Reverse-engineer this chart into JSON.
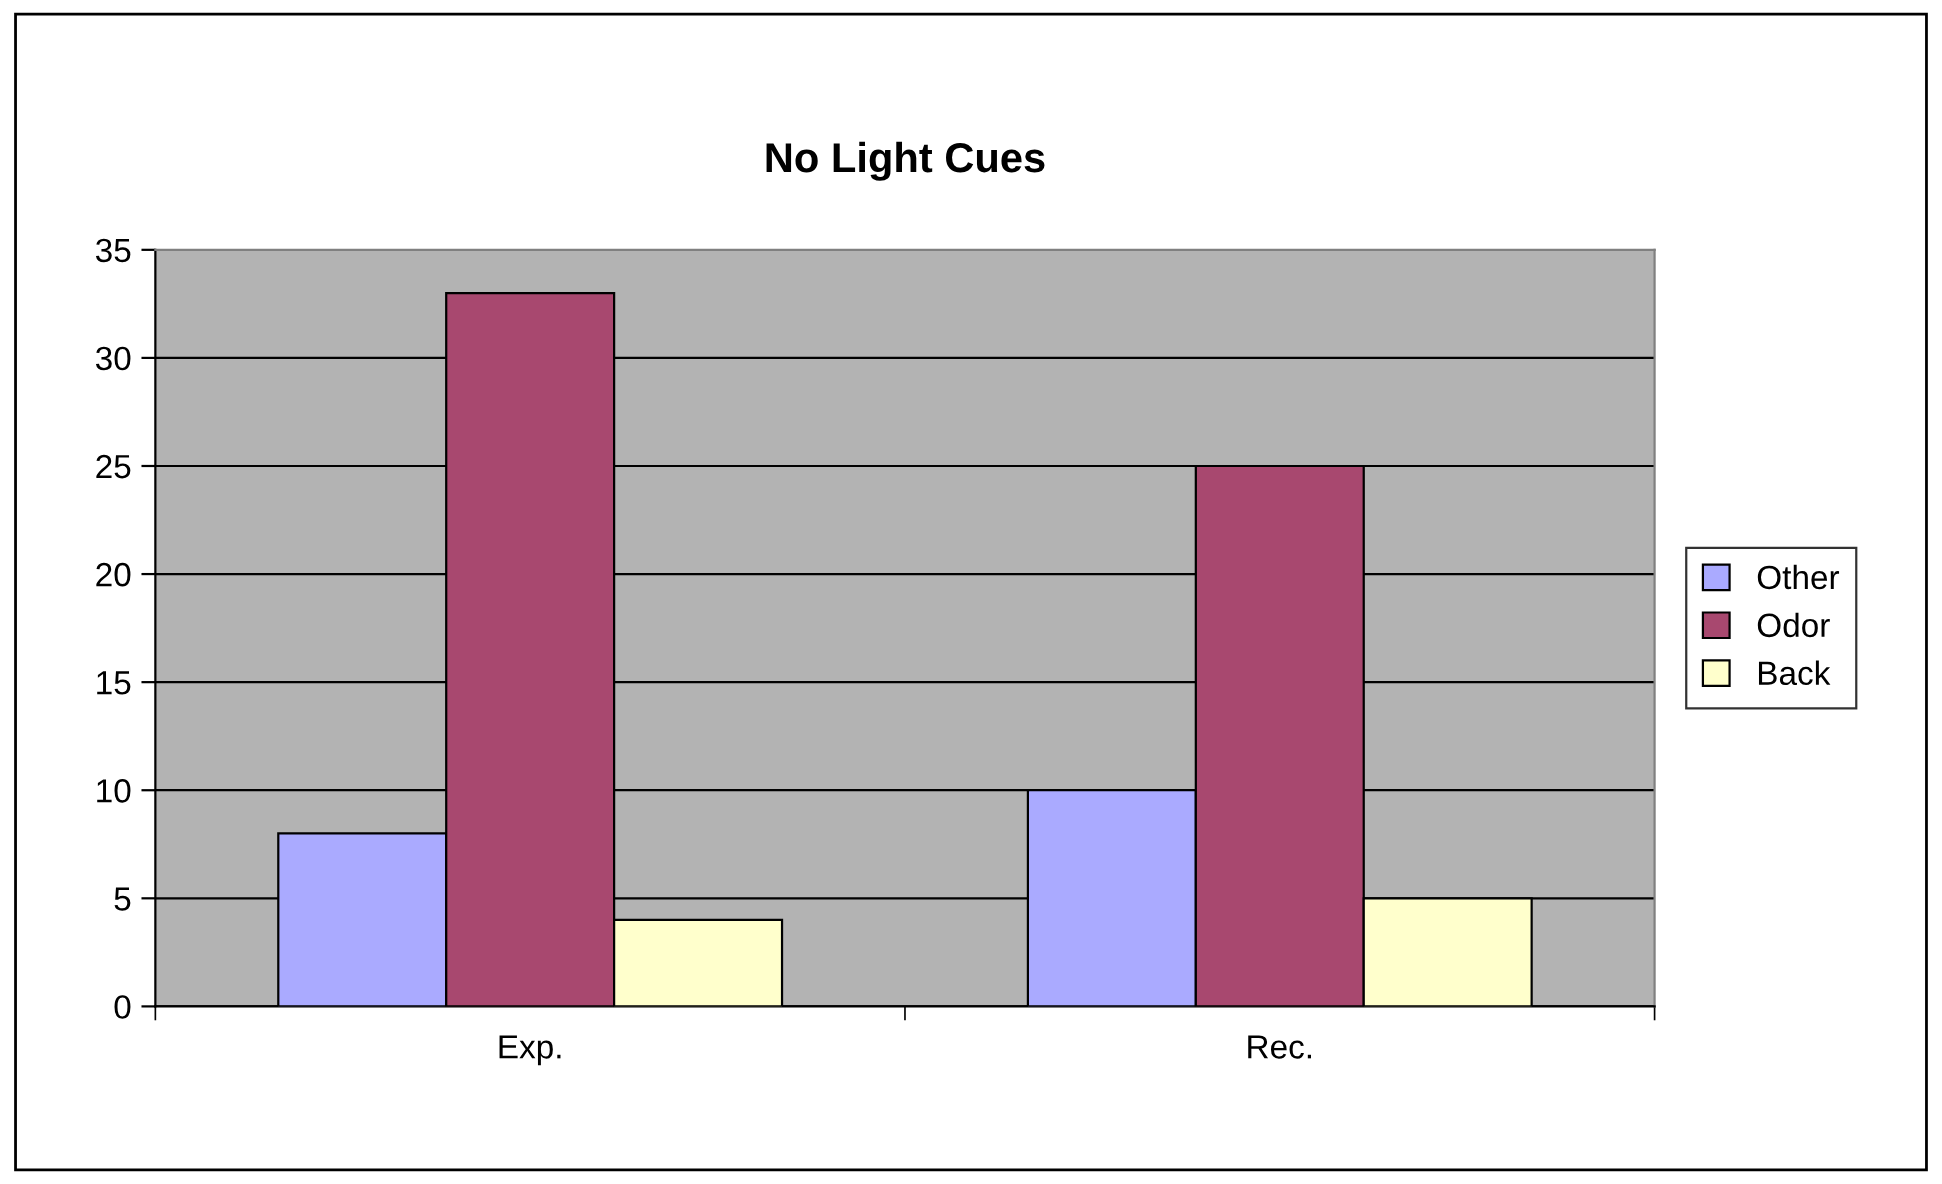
{
  "chart_data": {
    "type": "bar",
    "title": "No Light Cues",
    "categories": [
      "Exp.",
      "Rec."
    ],
    "series": [
      {
        "name": "Other",
        "color": "#aaaaff",
        "values": [
          8,
          10
        ]
      },
      {
        "name": "Odor",
        "color": "#a8486f",
        "values": [
          33,
          25
        ]
      },
      {
        "name": "Back",
        "color": "#ffffcc",
        "values": [
          4,
          5
        ]
      }
    ],
    "ylim": [
      0,
      35
    ],
    "yticks": [
      0,
      5,
      10,
      15,
      20,
      25,
      30,
      35
    ],
    "grid": "y",
    "legend": "right"
  }
}
